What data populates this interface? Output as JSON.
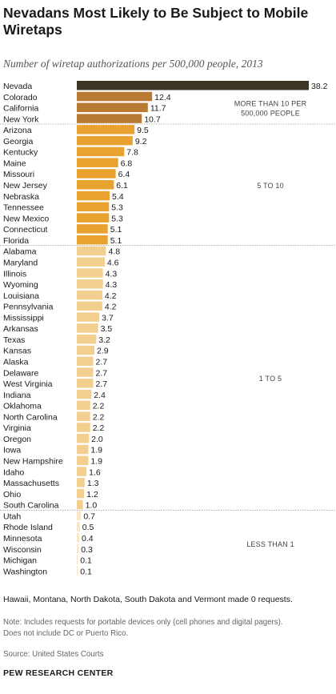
{
  "chart_data": {
    "type": "bar",
    "orientation": "horizontal",
    "title": "Nevadans Most Likely to Be Subject to Mobile Wiretaps",
    "subtitle": "Number of wiretap authorizations per 500,000 people, 2013",
    "categories": [
      "Nevada",
      "Colorado",
      "California",
      "New York",
      "Arizona",
      "Georgia",
      "Kentucky",
      "Maine",
      "Missouri",
      "New Jersey",
      "Nebraska",
      "Tennessee",
      "New Mexico",
      "Connecticut",
      "Florida",
      "Alabama",
      "Maryland",
      "Illinois",
      "Wyoming",
      "Louisiana",
      "Pennsylvania",
      "Mississippi",
      "Arkansas",
      "Texas",
      "Kansas",
      "Alaska",
      "Delaware",
      "West Virginia",
      "Indiana",
      "Oklahoma",
      "North Carolina",
      "Virginia",
      "Oregon",
      "Iowa",
      "New Hampshire",
      "Idaho",
      "Massachusetts",
      "Ohio",
      "South Carolina",
      "Utah",
      "Rhode Island",
      "Minnesota",
      "Wisconsin",
      "Michigan",
      "Washington"
    ],
    "values": [
      38.2,
      12.4,
      11.7,
      10.7,
      9.5,
      9.2,
      7.8,
      6.8,
      6.4,
      6.1,
      5.4,
      5.3,
      5.3,
      5.1,
      5.1,
      4.8,
      4.6,
      4.3,
      4.3,
      4.2,
      4.2,
      3.7,
      3.5,
      3.2,
      2.9,
      2.7,
      2.7,
      2.7,
      2.4,
      2.2,
      2.2,
      2.2,
      2.0,
      1.9,
      1.9,
      1.6,
      1.3,
      1.2,
      1.0,
      0.7,
      0.5,
      0.4,
      0.3,
      0.1,
      0.1
    ],
    "value_labels": [
      "38.2",
      "12.4",
      "11.7",
      "10.7",
      "9.5",
      "9.2",
      "7.8",
      "6.8",
      "6.4",
      "6.1",
      "5.4",
      "5.3",
      "5.3",
      "5.1",
      "5.1",
      "4.8",
      "4.6",
      "4.3",
      "4.3",
      "4.2",
      "4.2",
      "3.7",
      "3.5",
      "3.2",
      "2.9",
      "2.7",
      "2.7",
      "2.7",
      "2.4",
      "2.2",
      "2.2",
      "2.2",
      "2.0",
      "1.9",
      "1.9",
      "1.6",
      "1.3",
      "1.2",
      "1.0",
      "0.7",
      "0.5",
      "0.4",
      "0.3",
      "0.1",
      "0.1"
    ],
    "groups": [
      {
        "label_lines": [
          "MORE THAN 10 PER",
          "500,000 PEOPLE"
        ],
        "start": 1,
        "end": 3,
        "color": "#b97a33"
      },
      {
        "label_lines": [
          "5 TO 10"
        ],
        "start": 4,
        "end": 14,
        "color": "#e9a22f"
      },
      {
        "label_lines": [
          "1 TO 5"
        ],
        "start": 15,
        "end": 38,
        "color": "#f2cf8f"
      },
      {
        "label_lines": [
          "LESS THAN 1"
        ],
        "start": 39,
        "end": 44,
        "color": "#f8e7c6"
      }
    ],
    "highlight": {
      "index": 0,
      "color": "#3c3526"
    },
    "xlim": [
      0,
      38.2
    ],
    "grid": false,
    "legend": "none"
  },
  "footnote": "Hawaii, Montana, North Dakota, South Dakota and Vermont made 0 requests.",
  "note_lines": [
    "Note: Includes requests for portable devices only (cell phones and digital pagers).",
    "Does not include DC or Puerto Rico."
  ],
  "source": "Source: United States Courts",
  "organization": "PEW RESEARCH CENTER"
}
